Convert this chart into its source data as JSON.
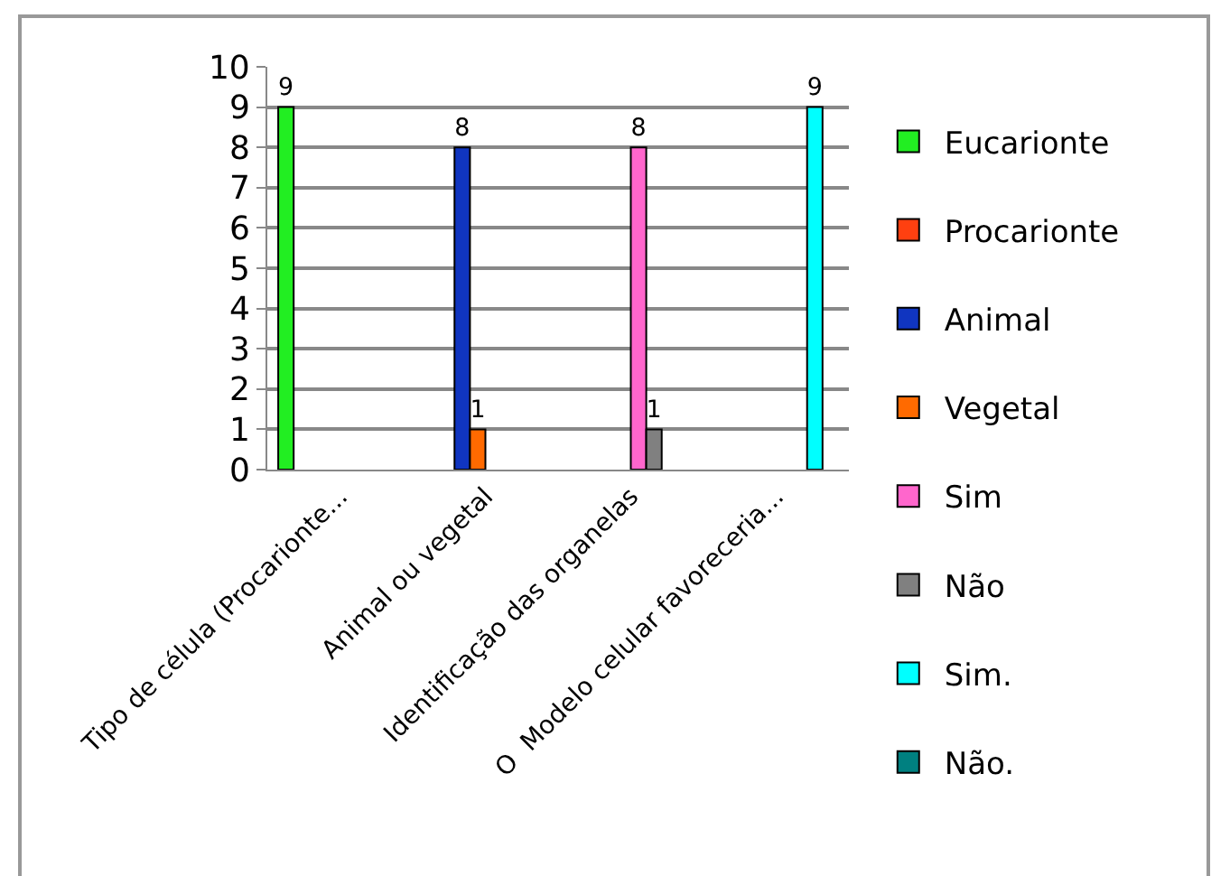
{
  "chart_data": {
    "type": "bar",
    "categories": [
      "Tipo de célula (Procarionte...",
      "Animal ou vegetal",
      "Identificação das organelas",
      "O  Modelo celular favoreceria..."
    ],
    "series": [
      {
        "name": "Eucarionte",
        "color": "#22ee22",
        "values": [
          9,
          null,
          null,
          null
        ]
      },
      {
        "name": "Procarionte",
        "color": "#ff4010",
        "values": [
          null,
          null,
          null,
          null
        ]
      },
      {
        "name": "Animal",
        "color": "#1035c0",
        "values": [
          null,
          8,
          null,
          null
        ]
      },
      {
        "name": "Vegetal",
        "color": "#ff6a00",
        "values": [
          null,
          1,
          null,
          null
        ]
      },
      {
        "name": "Sim",
        "color": "#ff66cc",
        "values": [
          null,
          null,
          8,
          null
        ]
      },
      {
        "name": "Não",
        "color": "#808080",
        "values": [
          null,
          null,
          1,
          null
        ]
      },
      {
        "name": "Sim.",
        "color": "#00ffff",
        "values": [
          null,
          null,
          null,
          9
        ]
      },
      {
        "name": "Não.",
        "color": "#008080",
        "values": [
          null,
          null,
          null,
          null
        ]
      }
    ],
    "ylim": [
      0,
      10
    ],
    "yticks": [
      0,
      1,
      2,
      3,
      4,
      5,
      6,
      7,
      8,
      9,
      10
    ],
    "grid": "y",
    "legend": "right",
    "data_labels": true
  }
}
